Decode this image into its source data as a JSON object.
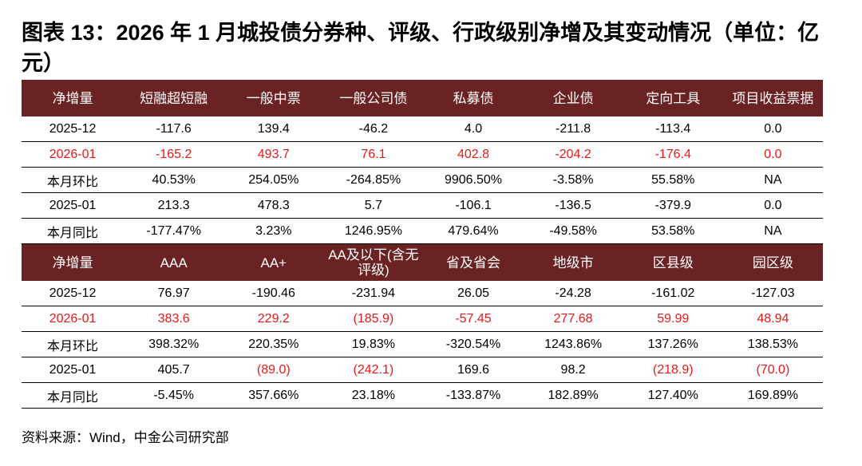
{
  "title": "图表 13：2026 年 1 月城投债分券种、评级、行政级别净增及其变动情况（单位：亿元）",
  "colors": {
    "header_bg": "#6b2223",
    "header_text": "#ffffff",
    "highlight": "#e21a1a"
  },
  "table1": {
    "headers": [
      "净增量",
      "短融超短融",
      "一般中票",
      "一般公司债",
      "私募债",
      "企业债",
      "定向工具",
      "项目收益票据"
    ],
    "rows": [
      [
        "2025-12",
        "-117.6",
        "139.4",
        "-46.2",
        "4.0",
        "-211.8",
        "-113.4",
        "0.0"
      ],
      [
        "2026-01",
        "-165.2",
        "493.7",
        "76.1",
        "402.8",
        "-204.2",
        "-176.4",
        "0.0"
      ],
      [
        "本月环比",
        "40.53%",
        "254.05%",
        "-264.85%",
        "9906.50%",
        "-3.58%",
        "55.58%",
        "NA"
      ],
      [
        "2025-01",
        "213.3",
        "478.3",
        "5.7",
        "-106.1",
        "-136.5",
        "-379.9",
        "0.0"
      ],
      [
        "本月同比",
        "-177.47%",
        "3.23%",
        "1246.95%",
        "479.64%",
        "-49.58%",
        "53.58%",
        "NA"
      ]
    ]
  },
  "table2": {
    "headers": [
      "净增量",
      "AAA",
      "AA+",
      "AA及以下(含无评级)",
      "省及省会",
      "地级市",
      "区县级",
      "园区级"
    ],
    "rows": [
      [
        "2025-12",
        "76.97",
        "-190.46",
        "-231.94",
        "26.05",
        "-24.28",
        "-161.02",
        "-127.03"
      ],
      [
        "2026-01",
        "383.6",
        "229.2",
        "(185.9)",
        "-57.45",
        "277.68",
        "59.99",
        "48.94"
      ],
      [
        "本月环比",
        "398.32%",
        "220.35%",
        "19.83%",
        "-320.54%",
        "1243.86%",
        "137.26%",
        "138.53%"
      ],
      [
        "2025-01",
        "405.7",
        "(89.0)",
        "(242.1)",
        "169.6",
        "98.2",
        "(218.9)",
        "(70.0)"
      ],
      [
        "本月同比",
        "-5.45%",
        "357.66%",
        "23.18%",
        "-133.87%",
        "182.89%",
        "127.40%",
        "169.89%"
      ]
    ]
  },
  "source": "资料来源：Wind，中金公司研究部"
}
